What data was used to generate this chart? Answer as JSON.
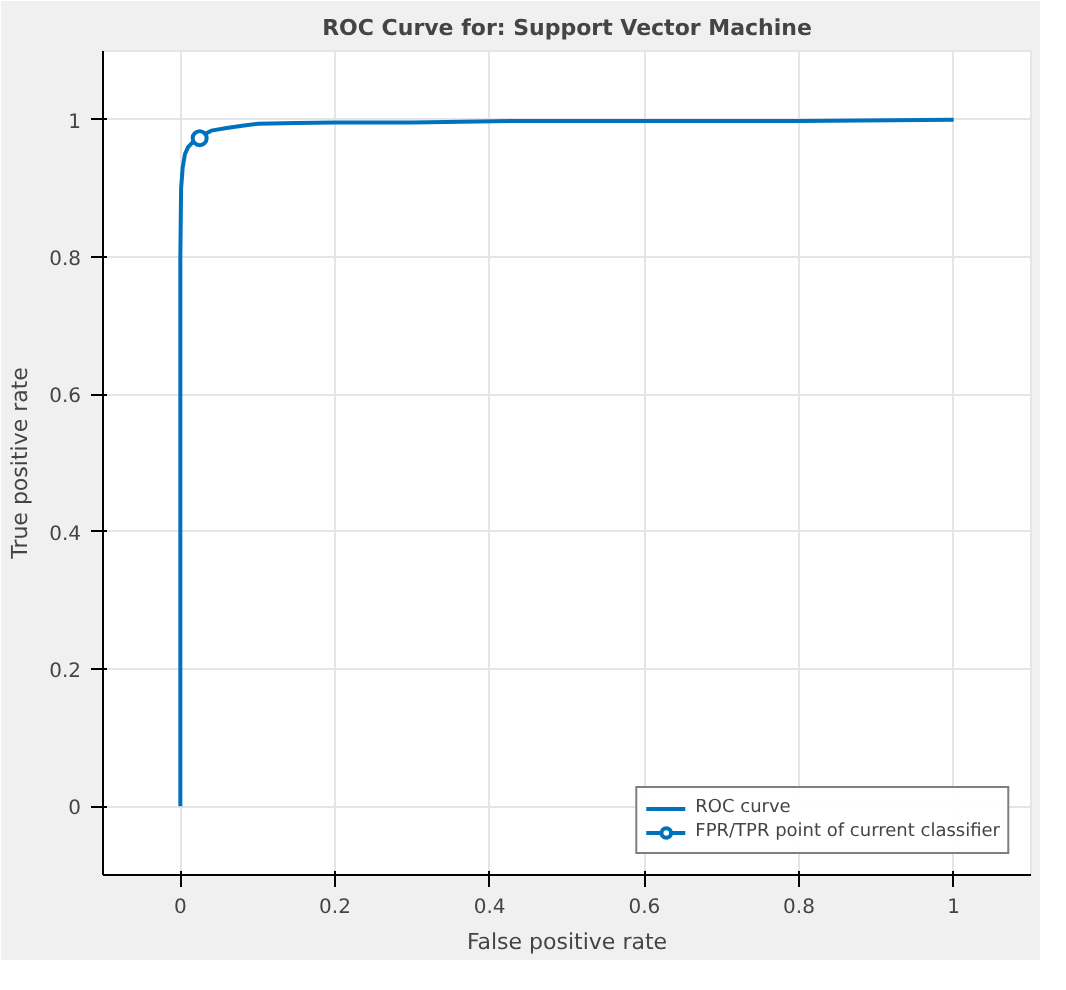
{
  "chart_data": {
    "type": "line",
    "title": "ROC Curve for: Support Vector Machine",
    "xlabel": "False positive rate",
    "ylabel": "True positive rate",
    "xlim": [
      -0.1,
      1.1
    ],
    "ylim": [
      -0.1,
      1.1
    ],
    "xticks": [
      0,
      0.2,
      0.4,
      0.6,
      0.8,
      1
    ],
    "yticks": [
      0,
      0.2,
      0.4,
      0.6,
      0.8,
      1
    ],
    "grid": true,
    "legend": "bottom right",
    "series": [
      {
        "name": "ROC curve",
        "color": "#0072bd",
        "marker": "none",
        "x": [
          0,
          0,
          0.001,
          0.003,
          0.006,
          0.01,
          0.015,
          0.02,
          0.03,
          0.04,
          0.06,
          0.08,
          0.1,
          0.15,
          0.2,
          0.3,
          0.43,
          0.6,
          0.8,
          1
        ],
        "values": [
          0,
          0.8,
          0.9,
          0.93,
          0.95,
          0.96,
          0.966,
          0.972,
          0.978,
          0.984,
          0.988,
          0.991,
          0.994,
          0.995,
          0.996,
          0.996,
          0.998,
          0.998,
          0.998,
          1
        ]
      },
      {
        "name": "FPR/TPR point of current classifier",
        "color": "#0072bd",
        "marker": "circle",
        "x": [
          0.025
        ],
        "values": [
          0.973
        ]
      }
    ]
  }
}
